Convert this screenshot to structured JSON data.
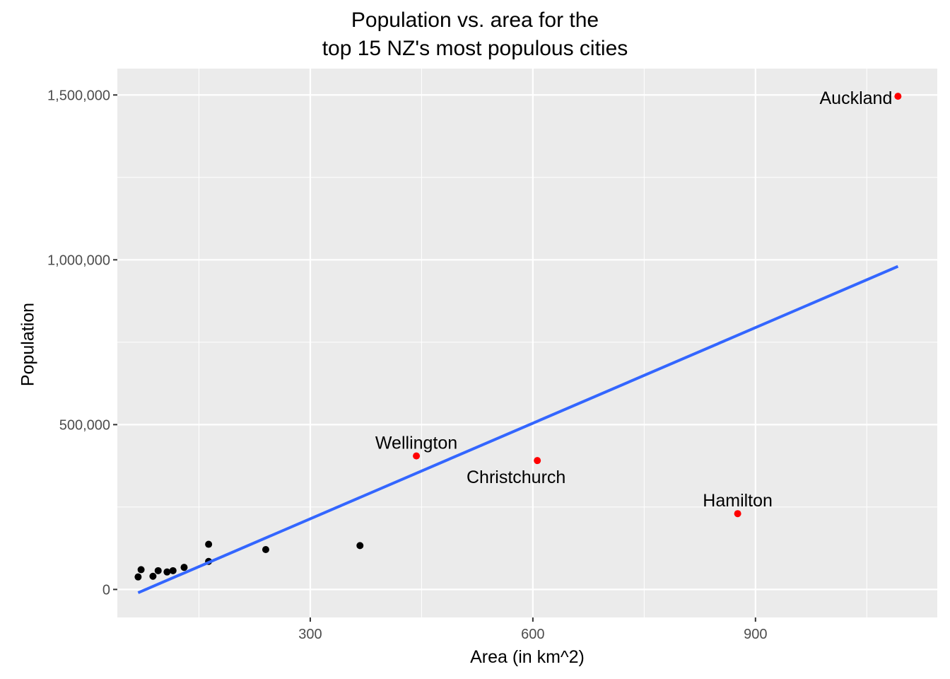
{
  "chart_data": {
    "type": "scatter",
    "title_lines": [
      "Population vs. area for the",
      "top 15 NZ's most populous cities"
    ],
    "xlabel": "Area (in km^2)",
    "ylabel": "Population",
    "xlim": [
      40,
      1145
    ],
    "ylim": [
      -85000,
      1580000
    ],
    "x_ticks": [
      300,
      600,
      900
    ],
    "x_tick_labels": [
      "300",
      "600",
      "900"
    ],
    "x_minor_ticks": [
      150,
      450,
      750,
      1050
    ],
    "y_ticks": [
      0,
      500000,
      1000000,
      1500000
    ],
    "y_tick_labels": [
      "0",
      "500,000",
      "1,000,000",
      "1,500,000"
    ],
    "y_minor_ticks": [
      250000,
      750000,
      1250000
    ],
    "colors": {
      "panel": "#EBEBEB",
      "grid": "#FFFFFF",
      "point": "#000000",
      "highlight": "#FF0000",
      "trend": "#3366FF",
      "tick_text": "#4D4D4D"
    },
    "points": [
      {
        "x": 68,
        "y": 38000,
        "highlight": false,
        "label": ""
      },
      {
        "x": 72,
        "y": 60000,
        "highlight": false,
        "label": ""
      },
      {
        "x": 88,
        "y": 40000,
        "highlight": false,
        "label": ""
      },
      {
        "x": 95,
        "y": 57000,
        "highlight": false,
        "label": ""
      },
      {
        "x": 107,
        "y": 53000,
        "highlight": false,
        "label": ""
      },
      {
        "x": 115,
        "y": 57000,
        "highlight": false,
        "label": ""
      },
      {
        "x": 130,
        "y": 67000,
        "highlight": false,
        "label": ""
      },
      {
        "x": 163,
        "y": 85000,
        "highlight": false,
        "label": ""
      },
      {
        "x": 163,
        "y": 137000,
        "highlight": false,
        "label": ""
      },
      {
        "x": 240,
        "y": 121000,
        "highlight": false,
        "label": ""
      },
      {
        "x": 367,
        "y": 133000,
        "highlight": false,
        "label": ""
      },
      {
        "x": 443,
        "y": 405000,
        "highlight": true,
        "label": "Wellington",
        "label_pos": "above"
      },
      {
        "x": 606,
        "y": 391000,
        "highlight": true,
        "label": "Christchurch",
        "label_pos": "below"
      },
      {
        "x": 876,
        "y": 230000,
        "highlight": true,
        "label": "Hamilton",
        "label_pos": "above"
      },
      {
        "x": 1092,
        "y": 1496000,
        "highlight": true,
        "label": "Auckland",
        "label_pos": "left"
      }
    ],
    "trend_line": {
      "x": [
        68,
        1092
      ],
      "y": [
        -10000,
        980000
      ]
    }
  }
}
